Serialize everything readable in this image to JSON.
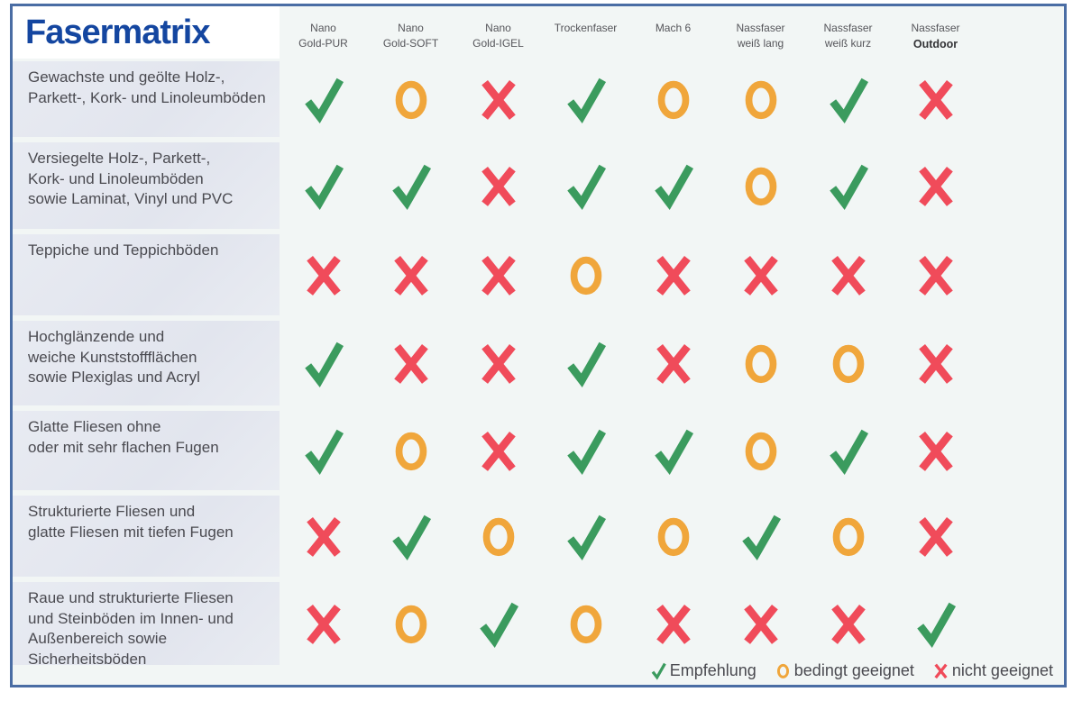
{
  "chart_data": {
    "type": "table",
    "title": "Fasermatrix",
    "columns": [
      {
        "lines": [
          "Nano",
          "Gold-PUR"
        ]
      },
      {
        "lines": [
          "Nano",
          "Gold-SOFT"
        ]
      },
      {
        "lines": [
          "Nano",
          "Gold-IGEL"
        ]
      },
      {
        "lines": [
          "Trockenfaser"
        ]
      },
      {
        "lines": [
          "Mach 6"
        ]
      },
      {
        "lines": [
          "Nassfaser",
          "weiß lang"
        ]
      },
      {
        "lines": [
          "Nassfaser",
          "weiß kurz"
        ]
      },
      {
        "lines": [
          "Nassfaser",
          "Outdoor"
        ],
        "emphasized_line": 1
      }
    ],
    "rows": [
      {
        "label_lines": [
          "Gewachste und geölte Holz-,",
          "Parkett-, Kork- und Linoleumböden"
        ],
        "values": [
          "check",
          "circle",
          "cross",
          "check",
          "circle",
          "circle",
          "check",
          "cross"
        ]
      },
      {
        "label_lines": [
          "Versiegelte Holz-, Parkett-,",
          "Kork- und Linoleumböden",
          "sowie Laminat, Vinyl und PVC"
        ],
        "values": [
          "check",
          "check",
          "cross",
          "check",
          "check",
          "circle",
          "check",
          "cross"
        ]
      },
      {
        "label_lines": [
          "Teppiche und Teppichböden"
        ],
        "values": [
          "cross",
          "cross",
          "cross",
          "circle",
          "cross",
          "cross",
          "cross",
          "cross"
        ]
      },
      {
        "label_lines": [
          "Hochglänzende und",
          "weiche Kunststoffflächen",
          "sowie Plexiglas und Acryl"
        ],
        "values": [
          "check",
          "cross",
          "cross",
          "check",
          "cross",
          "circle",
          "circle",
          "cross"
        ]
      },
      {
        "label_lines": [
          "Glatte Fliesen ohne",
          "oder mit sehr flachen Fugen"
        ],
        "values": [
          "check",
          "circle",
          "cross",
          "check",
          "check",
          "circle",
          "check",
          "cross"
        ]
      },
      {
        "label_lines": [
          "Strukturierte Fliesen und",
          "glatte Fliesen mit tiefen Fugen"
        ],
        "values": [
          "cross",
          "check",
          "circle",
          "check",
          "circle",
          "check",
          "circle",
          "cross"
        ]
      },
      {
        "label_lines": [
          "Raue und strukturierte Fliesen",
          "und Steinböden im Innen- und",
          "Außenbereich sowie Sicherheitsböden"
        ],
        "values": [
          "cross",
          "circle",
          "check",
          "circle",
          "cross",
          "cross",
          "cross",
          "check"
        ]
      }
    ],
    "legend": [
      {
        "symbol": "check",
        "label": "Empfehlung"
      },
      {
        "symbol": "circle",
        "label": "bedingt geeignet"
      },
      {
        "symbol": "cross",
        "label": "nicht geeignet"
      }
    ]
  },
  "colors": {
    "check_green": "#3b9b5e",
    "circle_orange": "#f0a63b",
    "cross_red": "#f04b5a",
    "title_blue": "#1446a0",
    "frame_border_blue": "#4a6da4",
    "label_block_gray": "#e5e8ef"
  }
}
